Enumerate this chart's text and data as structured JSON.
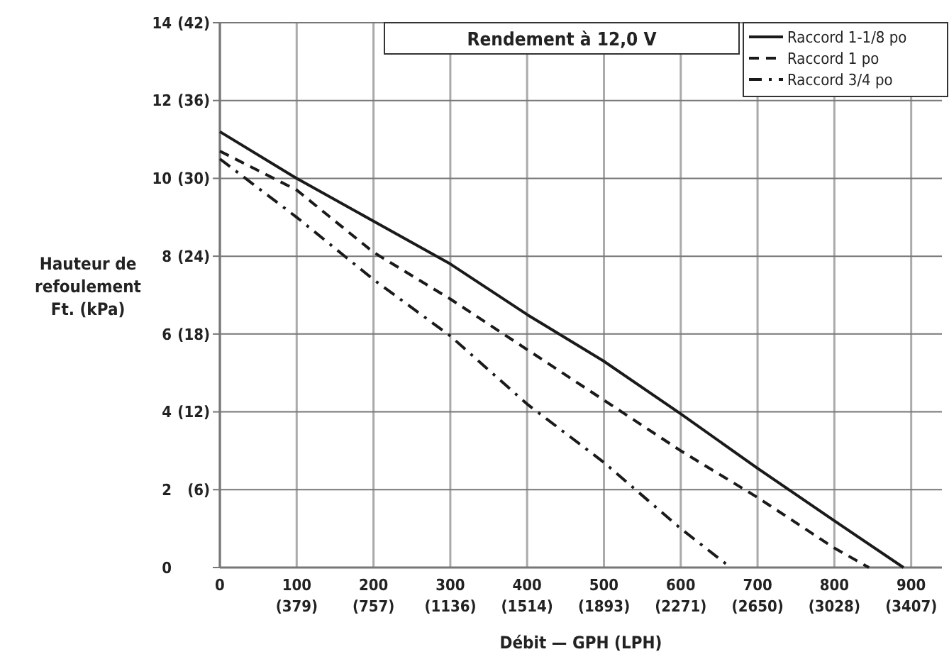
{
  "chart_data": {
    "type": "line",
    "title": "Rendement à 12,0 V",
    "xlabel": "Débit — GPH (LPH)",
    "ylabel": "Hauteur de refoulement Ft. (kPa)",
    "xlim": [
      0,
      940
    ],
    "ylim": [
      0,
      14
    ],
    "xticks": [
      0,
      100,
      200,
      300,
      400,
      500,
      600,
      700,
      800,
      900
    ],
    "x2lim": [
      0,
      3558
    ],
    "x2ticks": [
      {
        "value": 379,
        "label": "(379)"
      },
      {
        "value": 757,
        "label": "(757)"
      },
      {
        "value": 1136,
        "label": "(1136)"
      },
      {
        "value": 1514,
        "label": "(1514)"
      },
      {
        "value": 1893,
        "label": "(1893)"
      },
      {
        "value": 2271,
        "label": "(2271)"
      },
      {
        "value": 2650,
        "label": "(2650)"
      },
      {
        "value": 3028,
        "label": "(3028)"
      },
      {
        "value": 3407,
        "label": "(3407)"
      }
    ],
    "yticks": [
      0,
      2,
      4,
      6,
      8,
      10,
      12,
      14
    ],
    "y2lim": [
      0,
      42
    ],
    "y2ticks": [
      {
        "value": 6,
        "label": "(6)"
      },
      {
        "value": 12,
        "label": "(12)"
      },
      {
        "value": 18,
        "label": "(18)"
      },
      {
        "value": 24,
        "label": "(24)"
      },
      {
        "value": 30,
        "label": "(30)"
      },
      {
        "value": 36,
        "label": "(36)"
      },
      {
        "value": 42,
        "label": "(42)"
      }
    ],
    "grid": true,
    "legend": "top right",
    "marker": "none",
    "series": [
      {
        "name": "Raccord 1-1/8 po",
        "color": "#1a1a1a",
        "line_style": "solid",
        "x": [
          0,
          100,
          200,
          300,
          400,
          500,
          600,
          700,
          800,
          890
        ],
        "values": [
          11.2,
          10.0,
          8.9,
          7.8,
          6.5,
          5.3,
          3.95,
          2.55,
          1.2,
          0
        ]
      },
      {
        "name": "Raccord 1 po",
        "color": "#1a1a1a",
        "line_style": "dashed",
        "x": [
          0,
          100,
          200,
          300,
          400,
          500,
          600,
          700,
          800,
          845
        ],
        "values": [
          10.7,
          9.7,
          8.1,
          6.9,
          5.6,
          4.3,
          3.0,
          1.8,
          0.5,
          0
        ]
      },
      {
        "name": "Raccord 3/4 po",
        "color": "#1a1a1a",
        "line_style": "dashdot",
        "x": [
          0,
          100,
          200,
          300,
          400,
          500,
          600,
          665
        ],
        "values": [
          10.5,
          9.0,
          7.4,
          5.95,
          4.2,
          2.7,
          1.0,
          0
        ]
      }
    ]
  }
}
